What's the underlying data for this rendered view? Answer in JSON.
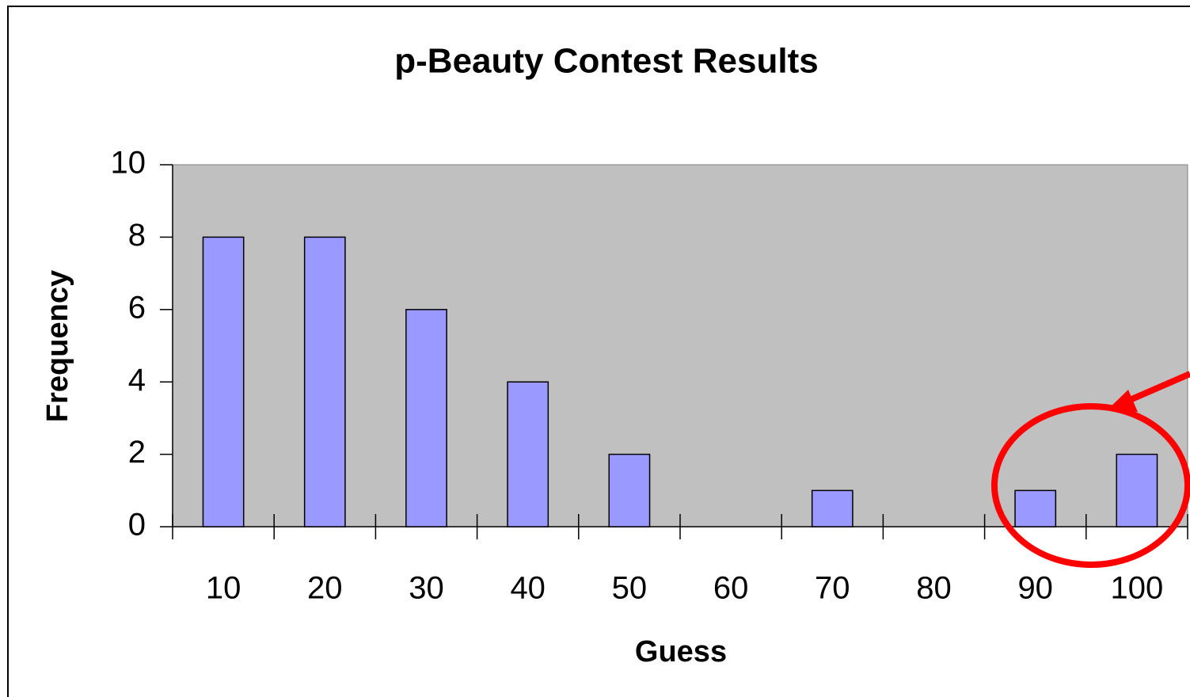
{
  "chart_data": {
    "type": "bar",
    "title": "p-Beauty Contest Results",
    "x_label": "Guess",
    "y_label": "Frequency",
    "categories": [
      "10",
      "20",
      "30",
      "40",
      "50",
      "60",
      "70",
      "80",
      "90",
      "100"
    ],
    "values": [
      8,
      8,
      6,
      4,
      2,
      0,
      1,
      0,
      1,
      2
    ],
    "color": "#9999ff",
    "plot_background": "#c0c0c0",
    "ylim": [
      0,
      10
    ],
    "yticks": [
      0,
      2,
      4,
      6,
      8,
      10
    ],
    "grid": false
  }
}
